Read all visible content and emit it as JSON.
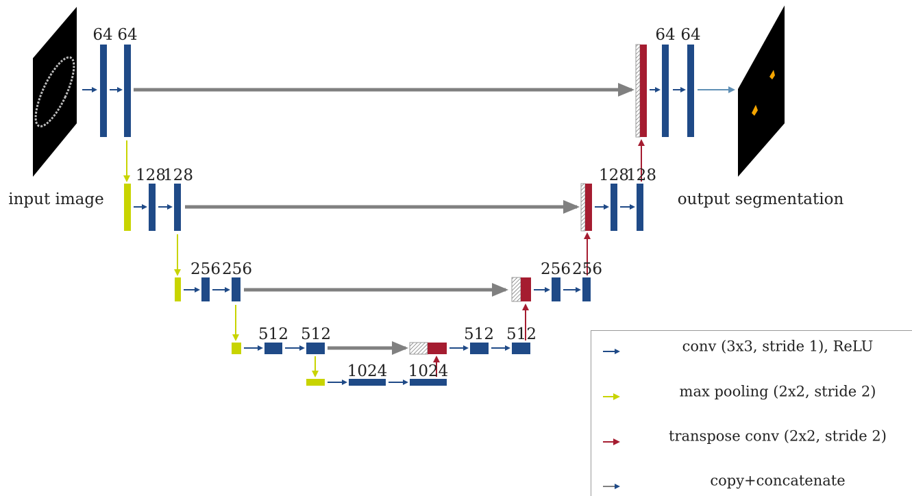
{
  "input_label": "input image",
  "output_label": "output segmentation",
  "levels": [
    {
      "encoder": [
        "64",
        "64"
      ],
      "decoder": [
        "64",
        "64"
      ]
    },
    {
      "encoder": [
        "128",
        "128"
      ],
      "decoder": [
        "128",
        "128"
      ]
    },
    {
      "encoder": [
        "256",
        "256"
      ],
      "decoder": [
        "256",
        "256"
      ]
    },
    {
      "encoder": [
        "512",
        "512"
      ],
      "decoder": [
        "512",
        "512"
      ]
    },
    {
      "encoder": [
        "1024",
        "1024"
      ]
    }
  ],
  "legend": [
    "conv (3x3, stride 1), ReLU",
    "max pooling (2x2, stride 2)",
    "transpose conv (2x2, stride 2)",
    "copy+concatenate"
  ]
}
